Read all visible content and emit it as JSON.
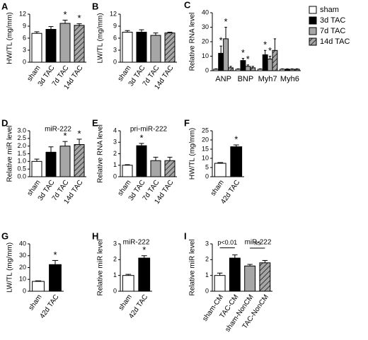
{
  "chart_data": [
    {
      "type": "bar",
      "label": "A",
      "ylabel": "HW/TL (mg/mm)",
      "categories": [
        "sham",
        "3d TAC",
        "7d TAC",
        "14d TAC"
      ],
      "values": [
        7.2,
        8.2,
        9.7,
        9.2
      ],
      "errors": [
        0.4,
        0.7,
        0.8,
        0.4
      ],
      "colors": [
        "#ffffff",
        "#000000",
        "#a6a6a6",
        "#a6a6a6"
      ],
      "hatch": [
        false,
        false,
        false,
        true
      ],
      "stars": [
        null,
        null,
        "*",
        "*"
      ],
      "ylim": [
        0,
        12
      ],
      "yticks": [
        0,
        3,
        6,
        9,
        12
      ]
    },
    {
      "type": "bar",
      "label": "B",
      "ylabel": "LW/TL (mg/mm)",
      "categories": [
        "sham",
        "3d TAC",
        "7d TAC",
        "14d TAC"
      ],
      "values": [
        7.5,
        7.5,
        6.7,
        7.3
      ],
      "errors": [
        0.4,
        0.6,
        0.6,
        0.2
      ],
      "colors": [
        "#ffffff",
        "#000000",
        "#a6a6a6",
        "#a6a6a6"
      ],
      "hatch": [
        false,
        false,
        false,
        true
      ],
      "ylim": [
        0,
        12
      ],
      "yticks": [
        0,
        3,
        6,
        9,
        12
      ]
    },
    {
      "type": "grouped_bar",
      "label": "C",
      "ylabel": "Relative RNA level",
      "categories": [
        "ANP",
        "BNP",
        "Myh7",
        "Myh6"
      ],
      "series": [
        {
          "name": "sham",
          "color": "#ffffff",
          "hatch": false,
          "values": [
            1,
            1,
            1,
            1
          ],
          "errors": [
            0.3,
            0.3,
            0.3,
            0.3
          ]
        },
        {
          "name": "3d TAC",
          "color": "#000000",
          "hatch": false,
          "values": [
            12,
            7,
            11,
            1
          ],
          "errors": [
            5,
            1.5,
            3,
            0.3
          ],
          "stars": [
            "*",
            "*",
            "*",
            null
          ]
        },
        {
          "name": "7d TAC",
          "color": "#a6a6a6",
          "hatch": false,
          "values": [
            22,
            3,
            8,
            1
          ],
          "errors": [
            8,
            1,
            2,
            0.3
          ],
          "stars": [
            "*",
            "*",
            "*",
            null
          ]
        },
        {
          "name": "14d TAC",
          "color": "#a6a6a6",
          "hatch": true,
          "values": [
            2,
            2,
            14,
            1
          ],
          "errors": [
            1,
            1,
            8,
            0.3
          ]
        }
      ],
      "ylim": [
        0,
        40
      ],
      "yticks": [
        0,
        10,
        20,
        30,
        40
      ],
      "legend": "right"
    },
    {
      "type": "bar",
      "label": "D",
      "title": "miR-222",
      "ylabel": "Relative miR level",
      "categories": [
        "sham",
        "3d TAC",
        "7d TAC",
        "14d TAC"
      ],
      "values": [
        1.0,
        1.6,
        2.0,
        2.1
      ],
      "errors": [
        0.15,
        0.35,
        0.3,
        0.35
      ],
      "colors": [
        "#ffffff",
        "#000000",
        "#a6a6a6",
        "#a6a6a6"
      ],
      "hatch": [
        false,
        false,
        false,
        true
      ],
      "stars": [
        null,
        null,
        "*",
        "*"
      ],
      "ylim": [
        0,
        3
      ],
      "yticks": [
        {
          "value": 0,
          "label": "0.0"
        },
        0.5,
        {
          "value": 1,
          "label": "1.0"
        },
        1.5,
        {
          "value": 2,
          "label": "2.0"
        },
        2.5,
        {
          "value": 3,
          "label": "3.0"
        }
      ]
    },
    {
      "type": "bar",
      "label": "E",
      "title": "pri-miR-222",
      "ylabel": "Relative RNA level",
      "categories": [
        "sham",
        "3d TAC",
        "7d TAC",
        "14d TAC"
      ],
      "values": [
        1.0,
        2.7,
        1.4,
        1.4
      ],
      "errors": [
        0.05,
        0.2,
        0.3,
        0.3
      ],
      "colors": [
        "#ffffff",
        "#000000",
        "#a6a6a6",
        "#a6a6a6"
      ],
      "hatch": [
        false,
        false,
        false,
        true
      ],
      "stars": [
        null,
        "*",
        null,
        null
      ],
      "ylim": [
        0,
        4
      ],
      "yticks": [
        0,
        1,
        2,
        3,
        4
      ]
    },
    {
      "type": "bar",
      "label": "F",
      "ylabel": "HW/TL (mg/mm)",
      "categories": [
        "sham",
        "42d TAC"
      ],
      "values": [
        7.3,
        16.3
      ],
      "errors": [
        0.4,
        1.0
      ],
      "colors": [
        "#ffffff",
        "#000000"
      ],
      "hatch": [
        false,
        false
      ],
      "stars": [
        null,
        "*"
      ],
      "ylim": [
        0,
        25
      ],
      "yticks": [
        0,
        5,
        10,
        15,
        20,
        25
      ]
    },
    {
      "type": "bar",
      "label": "G",
      "ylabel": "LW/TL (mg/mm)",
      "categories": [
        "sham",
        "42d TAC"
      ],
      "values": [
        8.3,
        22.5
      ],
      "errors": [
        0.5,
        3.5
      ],
      "colors": [
        "#ffffff",
        "#000000"
      ],
      "hatch": [
        false,
        false
      ],
      "stars": [
        null,
        "*"
      ],
      "ylim": [
        0,
        40
      ],
      "yticks": [
        0,
        10,
        20,
        30,
        40
      ]
    },
    {
      "type": "bar",
      "label": "H",
      "title": "miR-222",
      "ylabel": "Relative miR level",
      "categories": [
        "sham",
        "42d TAC"
      ],
      "values": [
        1.0,
        2.1
      ],
      "errors": [
        0.07,
        0.15
      ],
      "colors": [
        "#ffffff",
        "#000000"
      ],
      "hatch": [
        false,
        false
      ],
      "stars": [
        null,
        "*"
      ],
      "ylim": [
        0,
        3
      ],
      "yticks": [
        0,
        1,
        2,
        3
      ]
    },
    {
      "type": "bar",
      "label": "I",
      "title": "miR-222",
      "ylabel": "Relative miR level",
      "categories": [
        "sham-CM",
        "TAC-CM",
        "sham-NonCM",
        "TAC-NonCM"
      ],
      "values": [
        1.0,
        2.1,
        1.6,
        1.8
      ],
      "errors": [
        0.15,
        0.2,
        0.1,
        0.15
      ],
      "colors": [
        "#ffffff",
        "#000000",
        "#a6a6a6",
        "#a6a6a6"
      ],
      "hatch": [
        false,
        false,
        false,
        true
      ],
      "brackets": [
        {
          "text": "p<0.01",
          "from": 0,
          "to": 1
        },
        {
          "text": "ns",
          "from": 2,
          "to": 3
        }
      ],
      "ylim": [
        0,
        3
      ],
      "yticks": [
        0,
        1,
        2,
        3
      ]
    }
  ]
}
